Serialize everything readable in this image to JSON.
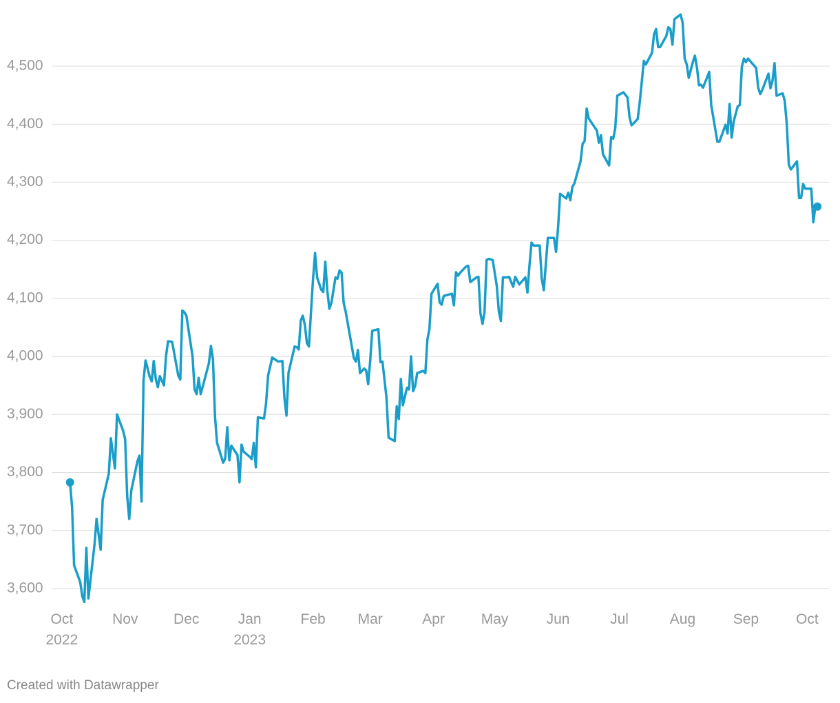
{
  "chart_data": {
    "type": "line",
    "footer": "Created with Datawrapper",
    "xlim": [
      -5,
      376
    ],
    "ylim": [
      3575,
      4590
    ],
    "xticks": [
      {
        "value": 0,
        "label": "Oct\n2022"
      },
      {
        "value": 31,
        "label": "Nov"
      },
      {
        "value": 61,
        "label": "Dec"
      },
      {
        "value": 92,
        "label": "Jan\n2023"
      },
      {
        "value": 123,
        "label": "Feb"
      },
      {
        "value": 151,
        "label": "Mar"
      },
      {
        "value": 182,
        "label": "Apr"
      },
      {
        "value": 212,
        "label": "May"
      },
      {
        "value": 243,
        "label": "Jun"
      },
      {
        "value": 273,
        "label": "Jul"
      },
      {
        "value": 304,
        "label": "Aug"
      },
      {
        "value": 335,
        "label": "Sep"
      },
      {
        "value": 365,
        "label": "Oct"
      }
    ],
    "yticks": [
      {
        "value": 3600,
        "label": "3,600"
      },
      {
        "value": 3700,
        "label": "3,700"
      },
      {
        "value": 3800,
        "label": "3,800"
      },
      {
        "value": 3900,
        "label": "3,900"
      },
      {
        "value": 4000,
        "label": "4,000"
      },
      {
        "value": 4100,
        "label": "4,100"
      },
      {
        "value": 4200,
        "label": "4,200"
      },
      {
        "value": 4300,
        "label": "4,300"
      },
      {
        "value": 4400,
        "label": "4,400"
      },
      {
        "value": 4500,
        "label": "4,500"
      }
    ],
    "grid": true,
    "end_markers": true,
    "x": [
      4,
      5,
      6,
      9,
      10,
      11,
      12,
      13,
      16,
      17,
      19,
      20,
      23,
      24,
      26,
      27,
      30,
      31,
      32,
      33,
      34,
      37,
      38,
      39,
      40,
      41,
      43,
      44,
      45,
      46,
      47,
      48,
      50,
      51,
      52,
      54,
      57,
      58,
      59,
      60,
      61,
      64,
      65,
      66,
      67,
      68,
      72,
      73,
      74,
      75,
      76,
      79,
      80,
      81,
      82,
      83,
      86,
      87,
      88,
      89,
      92,
      93,
      94,
      95,
      96,
      99,
      100,
      101,
      103,
      106,
      108,
      109,
      110,
      111,
      114,
      115,
      116,
      117,
      118,
      119,
      120,
      121,
      122,
      123,
      124,
      125,
      127,
      128,
      129,
      130,
      131,
      132,
      134,
      135,
      136,
      137,
      138,
      139,
      143,
      144,
      145,
      146,
      148,
      149,
      150,
      151,
      152,
      155,
      156,
      157,
      159,
      160,
      163,
      164,
      165,
      166,
      167,
      169,
      170,
      171,
      172,
      173,
      174,
      176,
      177,
      178,
      179,
      180,
      181,
      184,
      185,
      186,
      187,
      191,
      192,
      193,
      194,
      195,
      198,
      199,
      200,
      203,
      204,
      205,
      206,
      207,
      208,
      209,
      211,
      213,
      214,
      215,
      216,
      218,
      219,
      221,
      222,
      224,
      227,
      228,
      229,
      230,
      231,
      233,
      234,
      235,
      236,
      237,
      238,
      239,
      241,
      242,
      243,
      244,
      247,
      248,
      249,
      250,
      251,
      254,
      255,
      256,
      257,
      258,
      262,
      263,
      264,
      265,
      268,
      269,
      270,
      271,
      272,
      275,
      277,
      278,
      279,
      282,
      283,
      285,
      286,
      289,
      290,
      291,
      292,
      293,
      296,
      297,
      298,
      299,
      300,
      303,
      304,
      305,
      306,
      307,
      309,
      310,
      311,
      312,
      313,
      314,
      317,
      318,
      321,
      322,
      325,
      326,
      327,
      328,
      329,
      331,
      332,
      333,
      334,
      335,
      336,
      340,
      341,
      342,
      343,
      346,
      347,
      348,
      349,
      350,
      352,
      353,
      354,
      355,
      356,
      357,
      360,
      361,
      362,
      363,
      364,
      367,
      368,
      369,
      370
    ],
    "series": [
      {
        "color": "#1a9ec9",
        "values": [
          3783,
          3741,
          3640,
          3611,
          3587,
          3577,
          3670,
          3583,
          3676,
          3720,
          3667,
          3753,
          3798,
          3859,
          3807,
          3900,
          3872,
          3857,
          3759,
          3720,
          3769,
          3819,
          3829,
          3750,
          3959,
          3993,
          3965,
          3957,
          3992,
          3961,
          3947,
          3966,
          3950,
          4000,
          4026,
          4025,
          3967,
          3960,
          4079,
          4076,
          4070,
          4000,
          3943,
          3935,
          3963,
          3935,
          3988,
          4018,
          3995,
          3896,
          3851,
          3817,
          3824,
          3878,
          3821,
          3846,
          3830,
          3783,
          3848,
          3836,
          3827,
          3823,
          3851,
          3809,
          3895,
          3893,
          3919,
          3967,
          3998,
          3991,
          3992,
          3928,
          3898,
          3972,
          4017,
          4016,
          4012,
          4062,
          4070,
          4054,
          4023,
          4017,
          4076,
          4133,
          4178,
          4136,
          4115,
          4111,
          4163,
          4113,
          4082,
          4092,
          4136,
          4134,
          4148,
          4144,
          4092,
          4077,
          3997,
          3991,
          4011,
          3971,
          3979,
          3976,
          3952,
          3993,
          4044,
          4047,
          3990,
          3991,
          3928,
          3860,
          3854,
          3914,
          3892,
          3961,
          3916,
          3946,
          3943,
          4000,
          3940,
          3949,
          3971,
          3974,
          3975,
          3971,
          4029,
          4047,
          4108,
          4125,
          4093,
          4089,
          4104,
          4108,
          4088,
          4145,
          4139,
          4144,
          4155,
          4156,
          4128,
          4136,
          4137,
          4074,
          4056,
          4077,
          4166,
          4168,
          4166,
          4121,
          4077,
          4061,
          4136,
          4136,
          4137,
          4120,
          4137,
          4124,
          4136,
          4110,
          4157,
          4196,
          4191,
          4191,
          4191,
          4134,
          4114,
          4159,
          4204,
          4204,
          4204,
          4180,
          4222,
          4280,
          4272,
          4282,
          4269,
          4292,
          4298,
          4336,
          4366,
          4371,
          4427,
          4410,
          4389,
          4368,
          4381,
          4348,
          4329,
          4378,
          4375,
          4393,
          4449,
          4455,
          4446,
          4412,
          4398,
          4409,
          4438,
          4509,
          4503,
          4523,
          4555,
          4564,
          4533,
          4533,
          4552,
          4567,
          4564,
          4537,
          4581,
          4589,
          4575,
          4513,
          4503,
          4480,
          4507,
          4518,
          4498,
          4467,
          4468,
          4463,
          4490,
          4433,
          4370,
          4370,
          4399,
          4384,
          4435,
          4377,
          4405,
          4431,
          4433,
          4499,
          4513,
          4507,
          4513,
          4497,
          4463,
          4452,
          4459,
          4487,
          4462,
          4475,
          4505,
          4449,
          4452,
          4453,
          4440,
          4400,
          4330,
          4322,
          4336,
          4273,
          4273,
          4297,
          4289,
          4289,
          4231,
          4259,
          4258
        ]
      }
    ]
  }
}
